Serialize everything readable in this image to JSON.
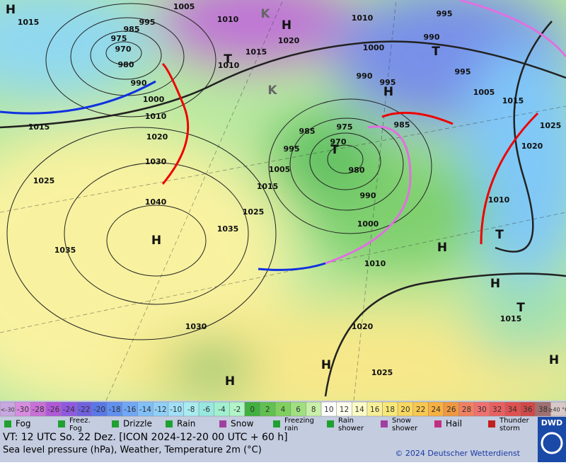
{
  "map": {
    "labels": [
      "1005",
      "H",
      "1015",
      "1010",
      "K",
      "H",
      "1020",
      "995",
      "985",
      "975",
      "970",
      "980",
      "990",
      "1000",
      "1010",
      "1020",
      "1030",
      "1040",
      "H",
      "1035",
      "1035",
      "1025",
      "1015",
      "1010",
      "995",
      "990",
      "1000",
      "T",
      "T",
      "1010",
      "1015",
      "995",
      "990",
      "K",
      "995",
      "H",
      "1005",
      "1015",
      "985",
      "975",
      "985",
      "1025",
      "1020",
      "995",
      "970",
      "T",
      "1005",
      "980",
      "990",
      "1015",
      "1025",
      "1000",
      "H",
      "1010",
      "T",
      "1010",
      "H",
      "T",
      "1015",
      "1020",
      "1030",
      "H",
      "1025",
      "H",
      "H"
    ]
  },
  "colorbar": [
    {
      "label": "<-30",
      "color": "#c8a8e0"
    },
    {
      "label": "-30",
      "color": "#d88ce0"
    },
    {
      "label": "-28",
      "color": "#c870d8"
    },
    {
      "label": "-26",
      "color": "#b058d8"
    },
    {
      "label": "-24",
      "color": "#9058e0"
    },
    {
      "label": "-22",
      "color": "#7060e0"
    },
    {
      "label": "-20",
      "color": "#5878e8"
    },
    {
      "label": "-18",
      "color": "#6090f0"
    },
    {
      "label": "-16",
      "color": "#70a8f8"
    },
    {
      "label": "-14",
      "color": "#80c0f8"
    },
    {
      "label": "-12",
      "color": "#90d0f8"
    },
    {
      "label": "-10",
      "color": "#a0e0f8"
    },
    {
      "label": "-8",
      "color": "#a8ecf0"
    },
    {
      "label": "-6",
      "color": "#98e8e0"
    },
    {
      "label": "-4",
      "color": "#a0f0d0"
    },
    {
      "label": "-2",
      "color": "#b0f4c8"
    },
    {
      "label": "0",
      "color": "#40b040"
    },
    {
      "label": "2",
      "color": "#60c050"
    },
    {
      "label": "4",
      "color": "#80d060"
    },
    {
      "label": "6",
      "color": "#a0e080"
    },
    {
      "label": "8",
      "color": "#c8f0a8"
    },
    {
      "label": "10",
      "color": "#ffffff"
    },
    {
      "label": "12",
      "color": "#fffff0"
    },
    {
      "label": "14",
      "color": "#fcfcc8"
    },
    {
      "label": "16",
      "color": "#f8f098"
    },
    {
      "label": "18",
      "color": "#f8e878"
    },
    {
      "label": "20",
      "color": "#f8d860"
    },
    {
      "label": "22",
      "color": "#f8c850"
    },
    {
      "label": "24",
      "color": "#f8b040"
    },
    {
      "label": "26",
      "color": "#f09840"
    },
    {
      "label": "28",
      "color": "#f08060"
    },
    {
      "label": "30",
      "color": "#f07070"
    },
    {
      "label": "32",
      "color": "#e86060"
    },
    {
      "label": "34",
      "color": "#e05050"
    },
    {
      "label": "36",
      "color": "#d04848"
    },
    {
      "label": "38",
      "color": "#a07070"
    },
    {
      "label": "≥40 °C",
      "color": "#d8c8c8"
    }
  ],
  "legend": [
    [
      "Fog"
    ],
    [
      "Freez.",
      "Fog"
    ],
    [
      "Drizzle"
    ],
    [
      "Rain"
    ],
    [
      "Snow"
    ],
    [
      "Freezing",
      "rain"
    ],
    [
      "Rain",
      "shower"
    ],
    [
      "Snow",
      "shower"
    ],
    [
      "Hail"
    ],
    [
      "Thunder",
      "storm"
    ]
  ],
  "footer": {
    "line1": "VT: 12 UTC So.  22 Dez. [ICON 2024-12-20  00 UTC + 60 h]",
    "line2": "Sea level pressure (hPa), Weather, Temperature 2m (°C)",
    "copyright": "© 2024 Deutscher Wetterdienst",
    "logo": "DWD"
  }
}
